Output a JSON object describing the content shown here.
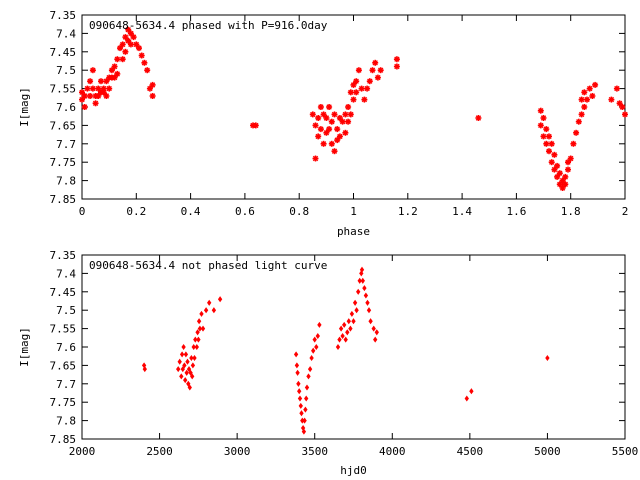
{
  "chart_data": [
    {
      "type": "scatter",
      "title": "090648-5634.4 phased with P=916.0day",
      "xlabel": "phase",
      "ylabel": "I[mag]",
      "xlim": [
        0,
        2
      ],
      "ylim": [
        7.85,
        7.35
      ],
      "y_inverted": true,
      "grid": false,
      "marker_color": "#ff0000",
      "marker": "star",
      "x_ticks": [
        0,
        0.2,
        0.4,
        0.6,
        0.8,
        1,
        1.2,
        1.4,
        1.6,
        1.8,
        2
      ],
      "x_tick_labels": [
        "0",
        "0.2",
        "0.4",
        "0.6",
        "0.8",
        "1",
        "1.2",
        "1.4",
        "1.6",
        "1.8",
        "2"
      ],
      "y_ticks": [
        7.35,
        7.4,
        7.45,
        7.5,
        7.55,
        7.6,
        7.65,
        7.7,
        7.75,
        7.8,
        7.85
      ],
      "y_tick_labels": [
        "7.35",
        "7.4",
        "7.45",
        "7.5",
        "7.55",
        "7.6",
        "7.65",
        "7.7",
        "7.75",
        "7.8",
        "7.85"
      ],
      "points": [
        [
          0.0,
          7.56
        ],
        [
          0.0,
          7.58
        ],
        [
          0.01,
          7.6
        ],
        [
          0.01,
          7.57
        ],
        [
          0.02,
          7.55
        ],
        [
          0.03,
          7.53
        ],
        [
          0.03,
          7.57
        ],
        [
          0.04,
          7.55
        ],
        [
          0.04,
          7.5
        ],
        [
          0.05,
          7.57
        ],
        [
          0.05,
          7.59
        ],
        [
          0.06,
          7.55
        ],
        [
          0.06,
          7.57
        ],
        [
          0.07,
          7.56
        ],
        [
          0.07,
          7.53
        ],
        [
          0.08,
          7.56
        ],
        [
          0.08,
          7.55
        ],
        [
          0.09,
          7.53
        ],
        [
          0.09,
          7.57
        ],
        [
          0.1,
          7.52
        ],
        [
          0.1,
          7.55
        ],
        [
          0.11,
          7.52
        ],
        [
          0.11,
          7.5
        ],
        [
          0.12,
          7.49
        ],
        [
          0.12,
          7.52
        ],
        [
          0.13,
          7.47
        ],
        [
          0.13,
          7.51
        ],
        [
          0.14,
          7.44
        ],
        [
          0.15,
          7.43
        ],
        [
          0.15,
          7.47
        ],
        [
          0.16,
          7.41
        ],
        [
          0.16,
          7.45
        ],
        [
          0.17,
          7.39
        ],
        [
          0.17,
          7.42
        ],
        [
          0.18,
          7.4
        ],
        [
          0.18,
          7.43
        ],
        [
          0.19,
          7.41
        ],
        [
          0.2,
          7.43
        ],
        [
          0.21,
          7.44
        ],
        [
          0.22,
          7.46
        ],
        [
          0.23,
          7.48
        ],
        [
          0.24,
          7.5
        ],
        [
          0.25,
          7.55
        ],
        [
          0.26,
          7.57
        ],
        [
          0.26,
          7.54
        ],
        [
          0.63,
          7.65
        ],
        [
          0.64,
          7.65
        ],
        [
          0.85,
          7.62
        ],
        [
          0.86,
          7.65
        ],
        [
          0.86,
          7.74
        ],
        [
          0.87,
          7.63
        ],
        [
          0.87,
          7.68
        ],
        [
          0.88,
          7.6
        ],
        [
          0.88,
          7.66
        ],
        [
          0.89,
          7.62
        ],
        [
          0.89,
          7.7
        ],
        [
          0.9,
          7.63
        ],
        [
          0.9,
          7.67
        ],
        [
          0.91,
          7.6
        ],
        [
          0.91,
          7.66
        ],
        [
          0.92,
          7.64
        ],
        [
          0.92,
          7.7
        ],
        [
          0.93,
          7.62
        ],
        [
          0.93,
          7.72
        ],
        [
          0.94,
          7.66
        ],
        [
          0.94,
          7.69
        ],
        [
          0.95,
          7.63
        ],
        [
          0.95,
          7.68
        ],
        [
          0.96,
          7.64
        ],
        [
          0.97,
          7.62
        ],
        [
          0.97,
          7.67
        ],
        [
          0.98,
          7.6
        ],
        [
          0.98,
          7.64
        ],
        [
          0.99,
          7.56
        ],
        [
          0.99,
          7.62
        ],
        [
          1.0,
          7.54
        ],
        [
          1.0,
          7.58
        ],
        [
          1.01,
          7.53
        ],
        [
          1.01,
          7.56
        ],
        [
          1.02,
          7.5
        ],
        [
          1.03,
          7.55
        ],
        [
          1.04,
          7.58
        ],
        [
          1.05,
          7.55
        ],
        [
          1.06,
          7.53
        ],
        [
          1.07,
          7.5
        ],
        [
          1.08,
          7.48
        ],
        [
          1.09,
          7.52
        ],
        [
          1.1,
          7.5
        ],
        [
          1.16,
          7.47
        ],
        [
          1.16,
          7.49
        ],
        [
          1.46,
          7.63
        ],
        [
          1.69,
          7.65
        ],
        [
          1.69,
          7.61
        ],
        [
          1.7,
          7.68
        ],
        [
          1.7,
          7.63
        ],
        [
          1.71,
          7.66
        ],
        [
          1.71,
          7.7
        ],
        [
          1.72,
          7.68
        ],
        [
          1.72,
          7.72
        ],
        [
          1.73,
          7.7
        ],
        [
          1.73,
          7.75
        ],
        [
          1.74,
          7.73
        ],
        [
          1.74,
          7.77
        ],
        [
          1.75,
          7.76
        ],
        [
          1.75,
          7.79
        ],
        [
          1.76,
          7.78
        ],
        [
          1.76,
          7.81
        ],
        [
          1.77,
          7.8
        ],
        [
          1.77,
          7.82
        ],
        [
          1.78,
          7.79
        ],
        [
          1.78,
          7.81
        ],
        [
          1.79,
          7.77
        ],
        [
          1.79,
          7.75
        ],
        [
          1.8,
          7.74
        ],
        [
          1.81,
          7.7
        ],
        [
          1.82,
          7.67
        ],
        [
          1.83,
          7.64
        ],
        [
          1.84,
          7.62
        ],
        [
          1.84,
          7.58
        ],
        [
          1.85,
          7.6
        ],
        [
          1.85,
          7.56
        ],
        [
          1.86,
          7.58
        ],
        [
          1.87,
          7.55
        ],
        [
          1.88,
          7.57
        ],
        [
          1.89,
          7.54
        ],
        [
          1.95,
          7.58
        ],
        [
          1.97,
          7.55
        ],
        [
          1.98,
          7.59
        ],
        [
          1.99,
          7.6
        ],
        [
          2.0,
          7.62
        ]
      ]
    },
    {
      "type": "scatter",
      "title": "090648-5634.4 not phased light curve",
      "xlabel": "hjd0",
      "ylabel": "I[mag]",
      "xlim": [
        2000,
        5500
      ],
      "ylim": [
        7.85,
        7.35
      ],
      "y_inverted": true,
      "grid": false,
      "marker_color": "#ff0000",
      "marker": "diamond",
      "x_ticks": [
        2000,
        2500,
        3000,
        3500,
        4000,
        4500,
        5000,
        5500
      ],
      "x_tick_labels": [
        "2000",
        "2500",
        "3000",
        "3500",
        "4000",
        "4500",
        "5000",
        "5500"
      ],
      "y_ticks": [
        7.35,
        7.4,
        7.45,
        7.5,
        7.55,
        7.6,
        7.65,
        7.7,
        7.75,
        7.8,
        7.85
      ],
      "y_tick_labels": [
        "7.35",
        "7.4",
        "7.45",
        "7.5",
        "7.55",
        "7.6",
        "7.65",
        "7.7",
        "7.75",
        "7.8",
        "7.85"
      ],
      "points": [
        [
          2400,
          7.65
        ],
        [
          2405,
          7.66
        ],
        [
          2620,
          7.66
        ],
        [
          2630,
          7.64
        ],
        [
          2640,
          7.68
        ],
        [
          2645,
          7.62
        ],
        [
          2650,
          7.66
        ],
        [
          2655,
          7.6
        ],
        [
          2660,
          7.65
        ],
        [
          2665,
          7.69
        ],
        [
          2670,
          7.62
        ],
        [
          2675,
          7.67
        ],
        [
          2680,
          7.64
        ],
        [
          2685,
          7.7
        ],
        [
          2690,
          7.66
        ],
        [
          2695,
          7.71
        ],
        [
          2700,
          7.67
        ],
        [
          2705,
          7.63
        ],
        [
          2710,
          7.68
        ],
        [
          2715,
          7.65
        ],
        [
          2720,
          7.6
        ],
        [
          2725,
          7.63
        ],
        [
          2730,
          7.58
        ],
        [
          2740,
          7.6
        ],
        [
          2745,
          7.56
        ],
        [
          2750,
          7.58
        ],
        [
          2755,
          7.53
        ],
        [
          2760,
          7.55
        ],
        [
          2770,
          7.51
        ],
        [
          2780,
          7.55
        ],
        [
          2800,
          7.5
        ],
        [
          2820,
          7.48
        ],
        [
          2850,
          7.5
        ],
        [
          2890,
          7.47
        ],
        [
          3380,
          7.62
        ],
        [
          3385,
          7.65
        ],
        [
          3390,
          7.67
        ],
        [
          3395,
          7.7
        ],
        [
          3400,
          7.72
        ],
        [
          3405,
          7.74
        ],
        [
          3410,
          7.76
        ],
        [
          3415,
          7.78
        ],
        [
          3420,
          7.8
        ],
        [
          3425,
          7.82
        ],
        [
          3430,
          7.83
        ],
        [
          3435,
          7.8
        ],
        [
          3440,
          7.77
        ],
        [
          3445,
          7.74
        ],
        [
          3450,
          7.71
        ],
        [
          3460,
          7.68
        ],
        [
          3470,
          7.66
        ],
        [
          3480,
          7.63
        ],
        [
          3490,
          7.61
        ],
        [
          3500,
          7.58
        ],
        [
          3510,
          7.6
        ],
        [
          3520,
          7.57
        ],
        [
          3530,
          7.54
        ],
        [
          3650,
          7.6
        ],
        [
          3660,
          7.58
        ],
        [
          3670,
          7.55
        ],
        [
          3680,
          7.57
        ],
        [
          3690,
          7.54
        ],
        [
          3700,
          7.58
        ],
        [
          3710,
          7.56
        ],
        [
          3720,
          7.53
        ],
        [
          3730,
          7.55
        ],
        [
          3740,
          7.51
        ],
        [
          3750,
          7.53
        ],
        [
          3760,
          7.48
        ],
        [
          3770,
          7.5
        ],
        [
          3780,
          7.45
        ],
        [
          3790,
          7.42
        ],
        [
          3800,
          7.4
        ],
        [
          3805,
          7.39
        ],
        [
          3810,
          7.42
        ],
        [
          3820,
          7.44
        ],
        [
          3830,
          7.46
        ],
        [
          3840,
          7.48
        ],
        [
          3850,
          7.5
        ],
        [
          3860,
          7.53
        ],
        [
          3880,
          7.55
        ],
        [
          3890,
          7.58
        ],
        [
          3900,
          7.56
        ],
        [
          4480,
          7.74
        ],
        [
          4510,
          7.72
        ],
        [
          5000,
          7.63
        ]
      ]
    }
  ]
}
